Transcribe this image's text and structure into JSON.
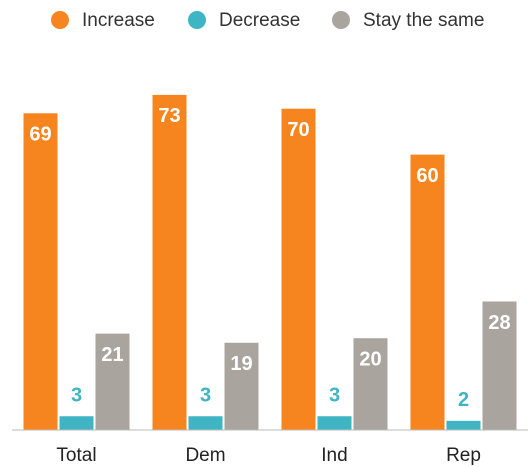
{
  "chart_data": {
    "type": "bar",
    "categories": [
      "Total",
      "Dem",
      "Ind",
      "Rep"
    ],
    "series": [
      {
        "name": "Increase",
        "color": "#f7851f",
        "values": [
          69,
          73,
          70,
          60
        ]
      },
      {
        "name": "Decrease",
        "color": "#3fb5c4",
        "values": [
          3,
          3,
          3,
          2
        ]
      },
      {
        "name": "Stay the same",
        "color": "#aaa49f",
        "values": [
          21,
          19,
          20,
          28
        ]
      }
    ],
    "legend": "top"
  }
}
